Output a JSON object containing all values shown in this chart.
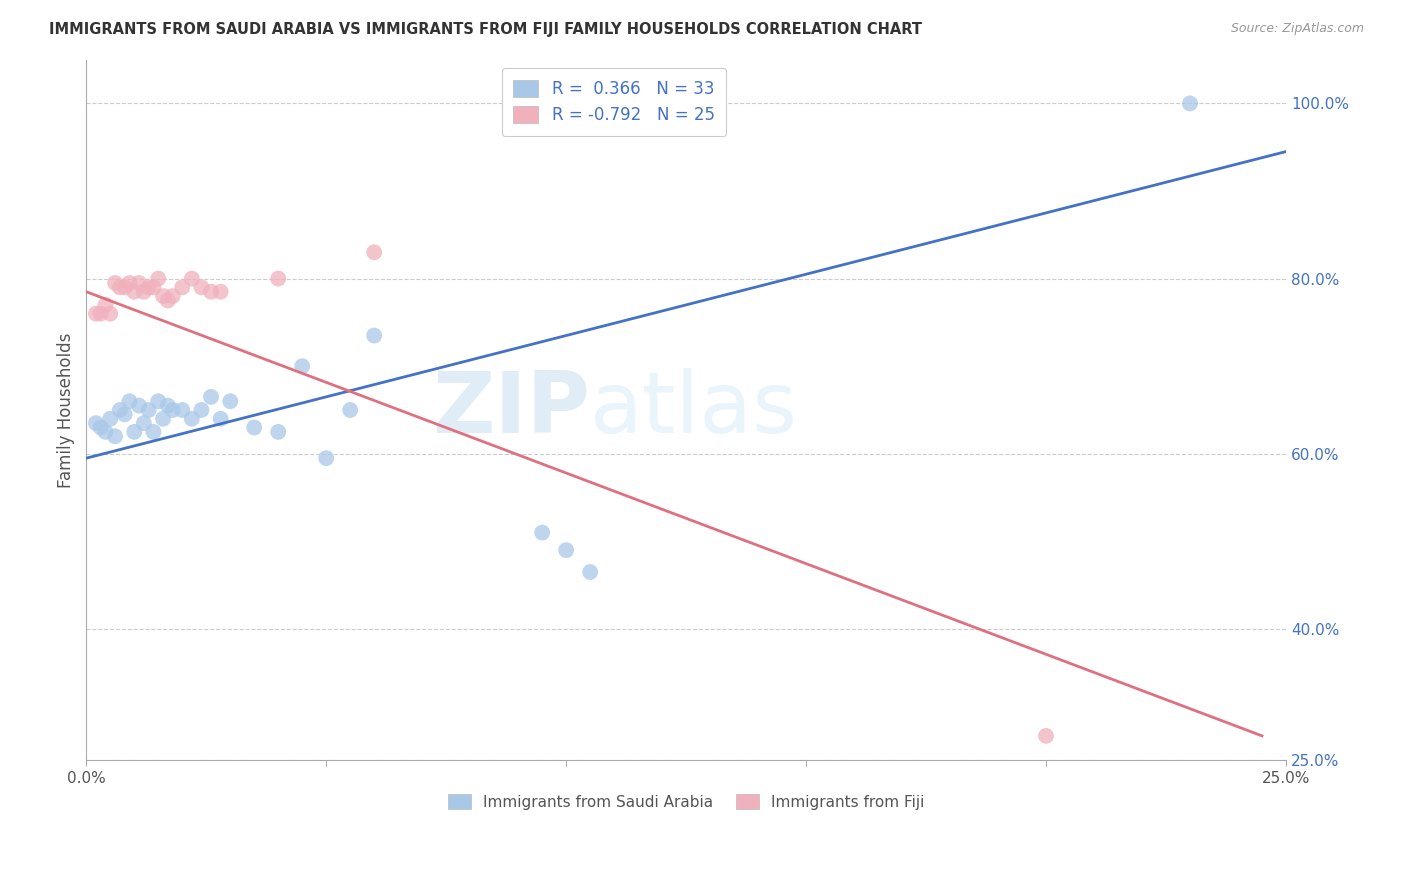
{
  "title": "IMMIGRANTS FROM SAUDI ARABIA VS IMMIGRANTS FROM FIJI FAMILY HOUSEHOLDS CORRELATION CHART",
  "source": "Source: ZipAtlas.com",
  "ylabel": "Family Households",
  "right_yticks": [
    "100.0%",
    "80.0%",
    "60.0%",
    "40.0%",
    "25.0%"
  ],
  "right_ytick_vals": [
    1.0,
    0.8,
    0.6,
    0.4,
    0.25
  ],
  "xlim": [
    0.0,
    0.25
  ],
  "ylim": [
    0.25,
    1.05
  ],
  "legend1_r": "0.366",
  "legend1_n": "33",
  "legend2_r": "-0.792",
  "legend2_n": "25",
  "blue_color": "#a8c8e8",
  "pink_color": "#f0b0bc",
  "blue_line_color": "#4472c4",
  "pink_line_color": "#e07080",
  "saudi_x": [
    0.002,
    0.003,
    0.004,
    0.005,
    0.006,
    0.007,
    0.008,
    0.009,
    0.01,
    0.011,
    0.012,
    0.013,
    0.014,
    0.015,
    0.016,
    0.017,
    0.018,
    0.02,
    0.022,
    0.024,
    0.026,
    0.028,
    0.03,
    0.035,
    0.04,
    0.045,
    0.05,
    0.055,
    0.06,
    0.095,
    0.1,
    0.105,
    0.23
  ],
  "saudi_y": [
    0.635,
    0.63,
    0.625,
    0.64,
    0.62,
    0.65,
    0.645,
    0.66,
    0.625,
    0.655,
    0.635,
    0.65,
    0.625,
    0.66,
    0.64,
    0.655,
    0.65,
    0.65,
    0.64,
    0.65,
    0.665,
    0.64,
    0.66,
    0.63,
    0.625,
    0.7,
    0.595,
    0.65,
    0.735,
    0.51,
    0.49,
    0.465,
    1.0
  ],
  "fiji_x": [
    0.002,
    0.003,
    0.004,
    0.005,
    0.006,
    0.007,
    0.008,
    0.009,
    0.01,
    0.011,
    0.012,
    0.013,
    0.014,
    0.015,
    0.016,
    0.017,
    0.018,
    0.02,
    0.022,
    0.024,
    0.026,
    0.028,
    0.04,
    0.06,
    0.2
  ],
  "fiji_y": [
    0.76,
    0.76,
    0.77,
    0.76,
    0.795,
    0.79,
    0.79,
    0.795,
    0.785,
    0.795,
    0.785,
    0.79,
    0.79,
    0.8,
    0.78,
    0.775,
    0.78,
    0.79,
    0.8,
    0.79,
    0.785,
    0.785,
    0.8,
    0.83,
    0.278
  ],
  "blue_line_x": [
    0.0,
    0.25
  ],
  "blue_line_y": [
    0.595,
    0.945
  ],
  "pink_line_x": [
    0.0,
    0.245
  ],
  "pink_line_y": [
    0.785,
    0.278
  ],
  "watermark_zip": "ZIP",
  "watermark_atlas": "atlas",
  "legend_label_blue": "Immigrants from Saudi Arabia",
  "legend_label_pink": "Immigrants from Fiji"
}
